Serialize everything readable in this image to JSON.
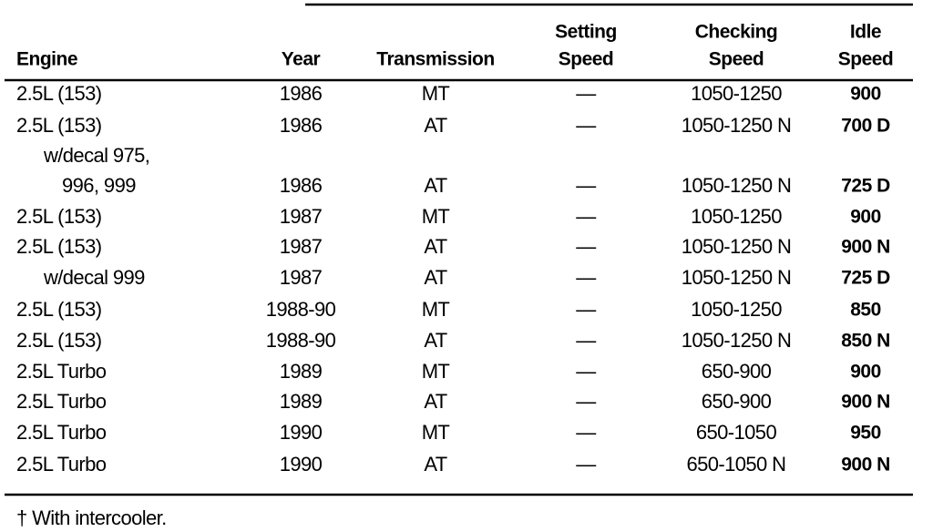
{
  "table": {
    "headers": [
      [
        "Engine"
      ],
      [
        "Year"
      ],
      [
        "Transmission"
      ],
      [
        "Setting",
        "Speed"
      ],
      [
        "Checking",
        "Speed"
      ],
      [
        "Idle",
        "Speed"
      ]
    ],
    "rows": [
      [
        [
          "2.5L (153)"
        ],
        "1986",
        "MT",
        "—",
        "1050-1250",
        "900"
      ],
      [
        [
          "2.5L (153)"
        ],
        "1986",
        "AT",
        "—",
        "1050-1250 N",
        "700 D"
      ],
      [
        [
          "w/decal 975,",
          "996, 999"
        ],
        "1986",
        "AT",
        "—",
        "1050-1250 N",
        "725 D"
      ],
      [
        [
          "2.5L (153)"
        ],
        "1987",
        "MT",
        "—",
        "1050-1250",
        "900"
      ],
      [
        [
          "2.5L (153)"
        ],
        "1987",
        "AT",
        "—",
        "1050-1250 N",
        "900 N"
      ],
      [
        [
          "w/decal 999"
        ],
        "1987",
        "AT",
        "—",
        "1050-1250 N",
        "725 D"
      ],
      [
        [
          "2.5L (153)"
        ],
        "1988-90",
        "MT",
        "—",
        "1050-1250",
        "850"
      ],
      [
        [
          "2.5L (153)"
        ],
        "1988-90",
        "AT",
        "—",
        "1050-1250 N",
        "850 N"
      ],
      [
        [
          "2.5L Turbo"
        ],
        "1989",
        "MT",
        "—",
        "650-900",
        "900"
      ],
      [
        [
          "2.5L Turbo"
        ],
        "1989",
        "AT",
        "—",
        "650-900",
        "900 N"
      ],
      [
        [
          "2.5L Turbo"
        ],
        "1990",
        "MT",
        "—",
        "650-1050",
        "950"
      ],
      [
        [
          "2.5L Turbo"
        ],
        "1990",
        "AT",
        "—",
        "650-1050 N",
        "900 N"
      ]
    ],
    "footnote": "† With intercooler."
  }
}
